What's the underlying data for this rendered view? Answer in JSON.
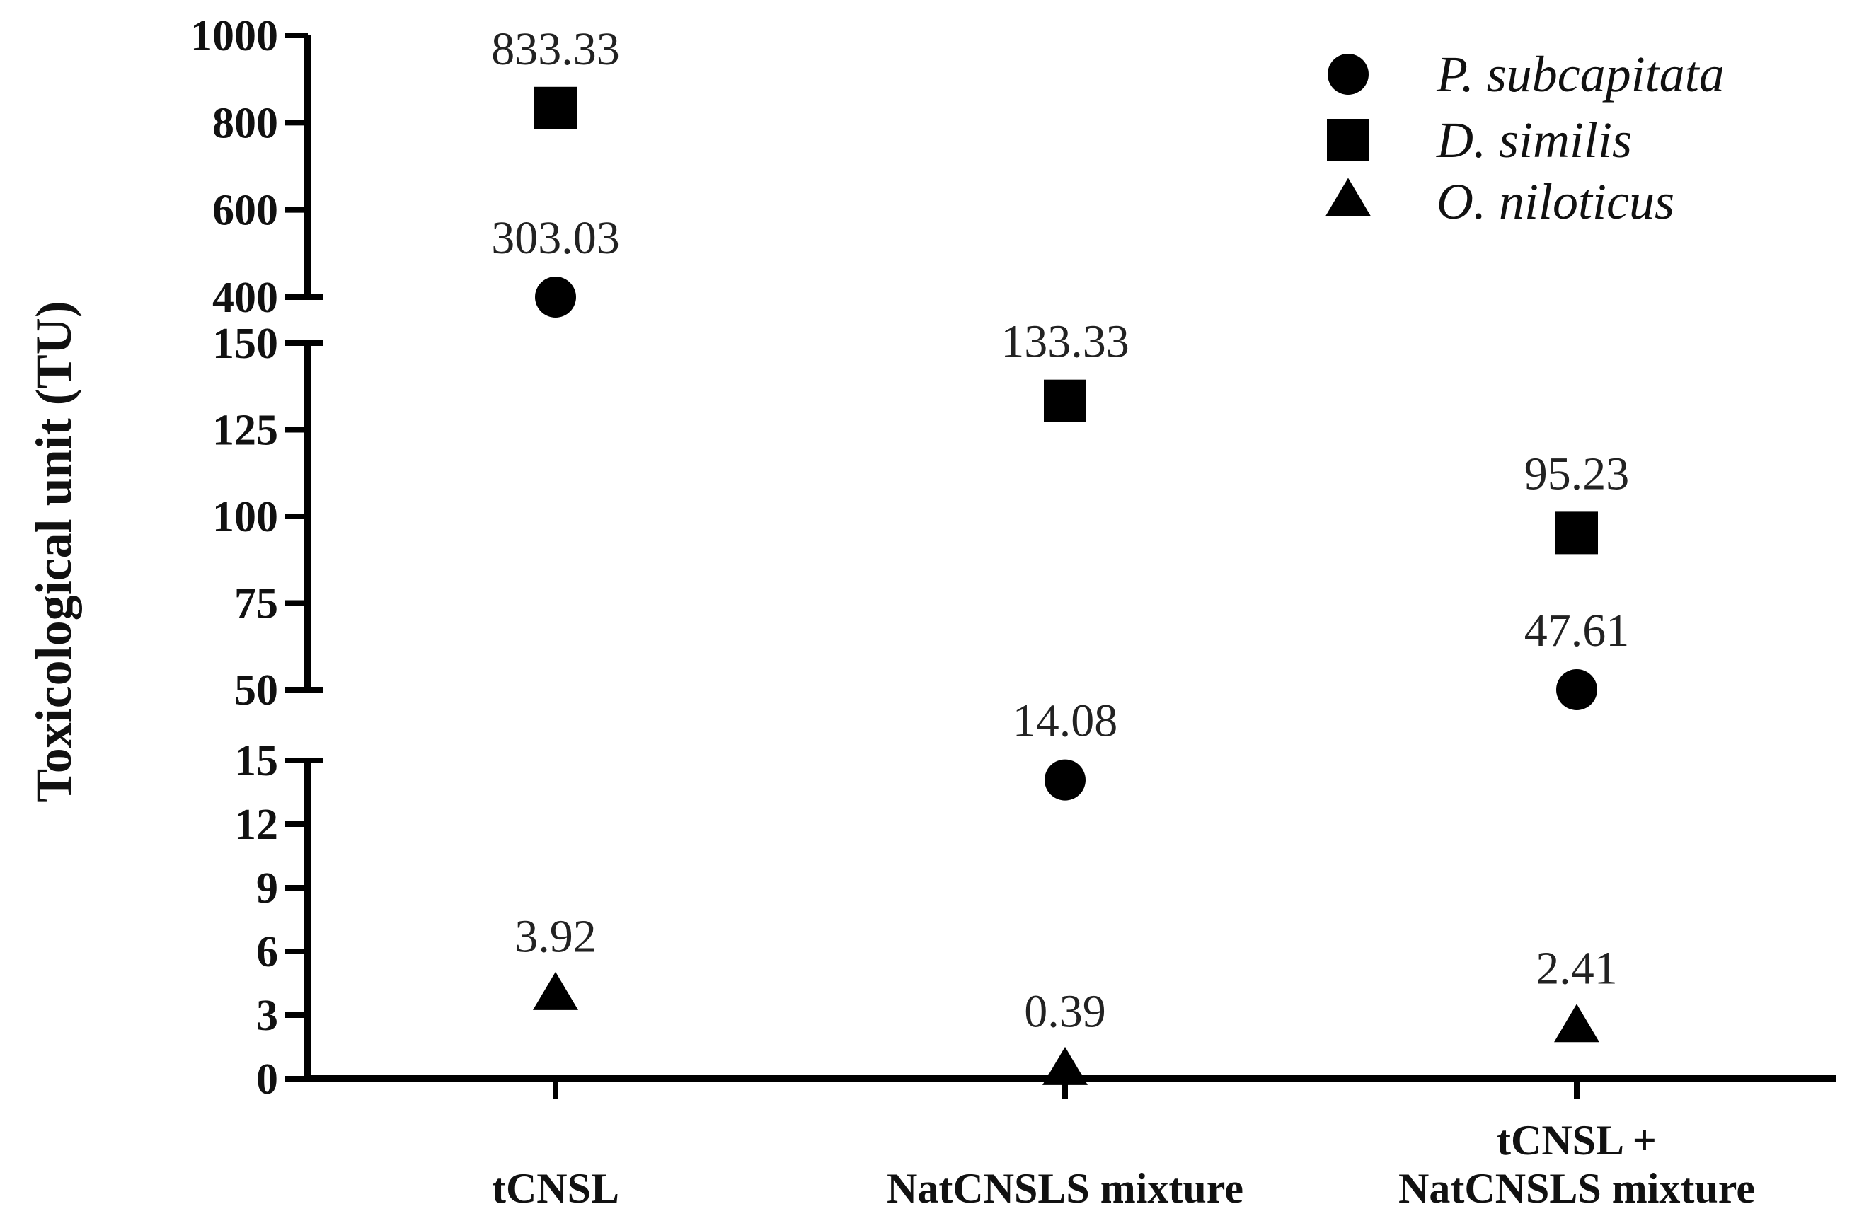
{
  "chart_data": {
    "type": "scatter",
    "ylabel": "Toxicological unit (TU)",
    "categories": [
      "tCNSL",
      "NatCNSLS mixture",
      "tCNSL + NatCNSLS mixture"
    ],
    "category_label_lines": [
      [
        "tCNSL"
      ],
      [
        "NatCNSLS mixture"
      ],
      [
        "tCNSL +",
        "NatCNSLS mixture"
      ]
    ],
    "y_axis_broken": true,
    "y_segments": [
      {
        "range": [
          0,
          15
        ],
        "ticks": [
          0,
          3,
          6,
          9,
          12,
          15
        ]
      },
      {
        "range": [
          50,
          150
        ],
        "ticks": [
          50,
          75,
          100,
          125,
          150
        ]
      },
      {
        "range": [
          400,
          1000
        ],
        "ticks": [
          400,
          600,
          800,
          1000
        ]
      }
    ],
    "series": [
      {
        "name": "P. subcapitata",
        "marker": "circle",
        "values": [
          303.03,
          14.08,
          47.61
        ],
        "labels": [
          "303.03",
          "14.08",
          "47.61"
        ]
      },
      {
        "name": "D. similis",
        "marker": "square",
        "values": [
          833.33,
          133.33,
          95.23
        ],
        "labels": [
          "833.33",
          "133.33",
          "95.23"
        ]
      },
      {
        "name": "O. niloticus",
        "marker": "triangle",
        "values": [
          3.92,
          0.39,
          2.41
        ],
        "labels": [
          "3.92",
          "0.39",
          "2.41"
        ]
      }
    ],
    "legend_position": "top-right",
    "grid": false,
    "color": "#000000"
  }
}
